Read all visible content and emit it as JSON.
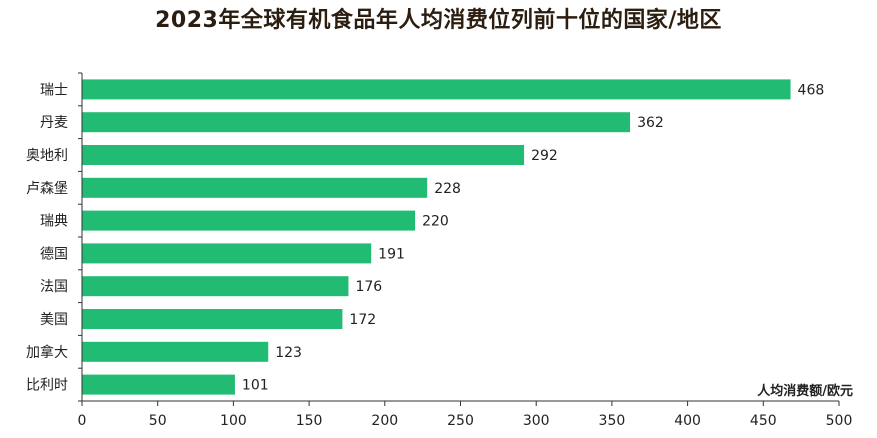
{
  "chart_data": {
    "type": "bar",
    "orientation": "horizontal",
    "title": "2023年全球有机食品年人均消费位列前十位的国家/地区",
    "xlabel": "人均消费额/欧元",
    "ylabel": "",
    "categories": [
      "瑞士",
      "丹麦",
      "奥地利",
      "卢森堡",
      "瑞典",
      "德国",
      "法国",
      "美国",
      "加拿大",
      "比利时"
    ],
    "values": [
      468,
      362,
      292,
      228,
      220,
      191,
      176,
      172,
      123,
      101
    ],
    "xlim": [
      0,
      500
    ],
    "xticks": [
      0,
      50,
      100,
      150,
      200,
      250,
      300,
      350,
      400,
      450,
      500
    ],
    "bar_color": "#22bb73",
    "grid": false,
    "legend": "none"
  }
}
